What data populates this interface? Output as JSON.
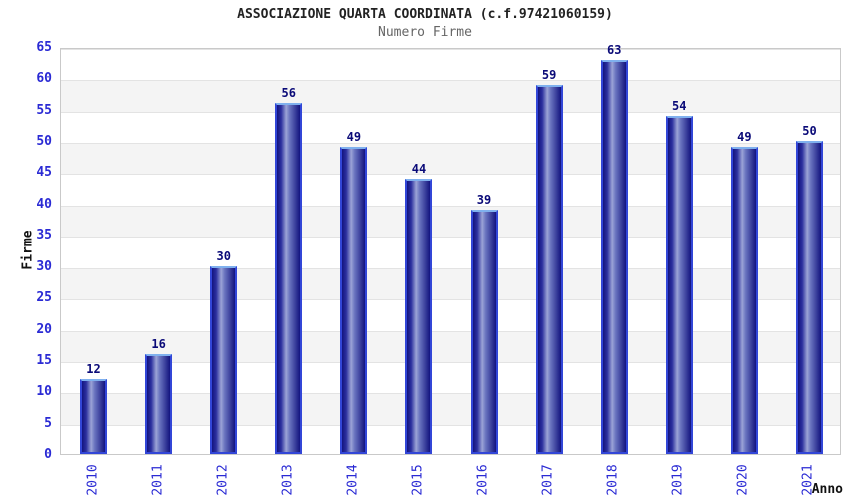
{
  "chart_data": {
    "type": "bar",
    "title": "ASSOCIAZIONE QUARTA COORDINATA (c.f.97421060159)",
    "subtitle": "Numero Firme",
    "xlabel": "Anno",
    "ylabel": "Firme",
    "categories": [
      "2010",
      "2011",
      "2012",
      "2013",
      "2014",
      "2015",
      "2016",
      "2017",
      "2018",
      "2019",
      "2020",
      "2021"
    ],
    "values": [
      12,
      16,
      30,
      56,
      49,
      44,
      39,
      59,
      63,
      54,
      49,
      50
    ],
    "ylim": [
      0,
      65
    ],
    "ytick_step": 5,
    "grid": "horizontal",
    "legend": "none",
    "band_fill": "alternating",
    "colors": {
      "tick_label_blue": "#2a2ad4",
      "value_label_navy": "#0a0a78",
      "title_color": "#222222",
      "subtitle_color": "#666666",
      "axis_title_color": "#111111",
      "bar_edge_dark": "#13147f",
      "bar_mid_dark": "#2b2f9e",
      "bar_highlight": "#9ba3d6",
      "bar_mid2": "#6a74bf",
      "bar_outline_blue": "#3246d7",
      "bar_top_cap": "#7fb0ee",
      "band_gray": "#f4f4f4",
      "gridline_gray": "#e3e3e3",
      "plot_border_gray": "#c9c9c9",
      "background": "#ffffff"
    }
  }
}
